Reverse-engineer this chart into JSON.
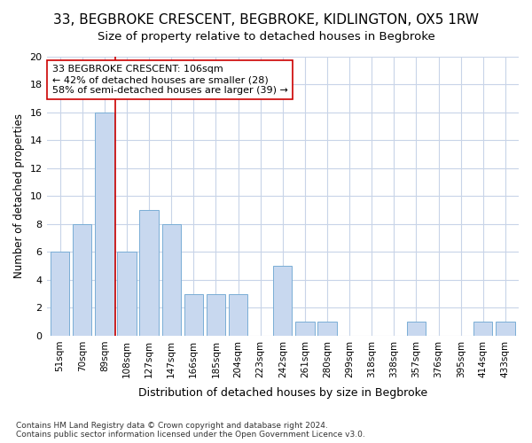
{
  "title": "33, BEGBROKE CRESCENT, BEGBROKE, KIDLINGTON, OX5 1RW",
  "subtitle": "Size of property relative to detached houses in Begbroke",
  "xlabel": "Distribution of detached houses by size in Begbroke",
  "ylabel": "Number of detached properties",
  "categories": [
    "51sqm",
    "70sqm",
    "89sqm",
    "108sqm",
    "127sqm",
    "147sqm",
    "166sqm",
    "185sqm",
    "204sqm",
    "223sqm",
    "242sqm",
    "261sqm",
    "280sqm",
    "299sqm",
    "318sqm",
    "338sqm",
    "357sqm",
    "376sqm",
    "395sqm",
    "414sqm",
    "433sqm"
  ],
  "values": [
    6,
    8,
    16,
    6,
    9,
    8,
    3,
    3,
    3,
    0,
    5,
    1,
    1,
    0,
    0,
    0,
    1,
    0,
    0,
    1,
    1
  ],
  "bar_color": "#c8d8ef",
  "bar_edge_color": "#7aaed6",
  "grid_color": "#c8d4e8",
  "vline_x_index": 3,
  "vline_color": "#cc0000",
  "annotation_text": "33 BEGBROKE CRESCENT: 106sqm\n← 42% of detached houses are smaller (28)\n58% of semi-detached houses are larger (39) →",
  "annotation_box_color": "#ffffff",
  "annotation_box_edge": "#cc0000",
  "ylim": [
    0,
    20
  ],
  "yticks": [
    0,
    2,
    4,
    6,
    8,
    10,
    12,
    14,
    16,
    18,
    20
  ],
  "footer": "Contains HM Land Registry data © Crown copyright and database right 2024.\nContains public sector information licensed under the Open Government Licence v3.0.",
  "background_color": "#ffffff",
  "plot_background": "#ffffff",
  "title_fontsize": 11,
  "subtitle_fontsize": 9.5
}
